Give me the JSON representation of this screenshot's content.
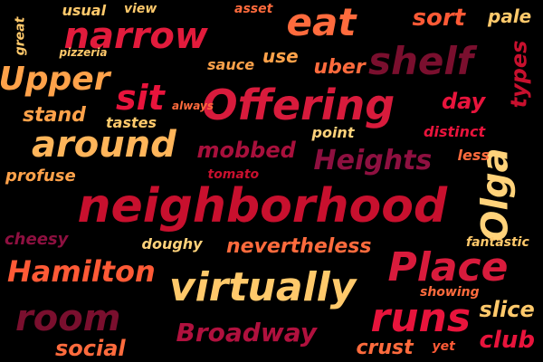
{
  "words": [
    {
      "text": "neighborhood",
      "color": "#c8102e",
      "rotated": false
    },
    {
      "text": "Offering",
      "color": "#d81b3c",
      "rotated": false
    },
    {
      "text": "around",
      "color": "#ffb55a",
      "rotated": false
    },
    {
      "text": "virtually",
      "color": "#ffc96b",
      "rotated": false
    },
    {
      "text": "narrow",
      "color": "#e21b3c",
      "rotated": false
    },
    {
      "text": "eat",
      "color": "#ff6b3d",
      "rotated": false
    },
    {
      "text": "shelf",
      "color": "#7a0f2e",
      "rotated": false
    },
    {
      "text": "Upper",
      "color": "#ffa24a",
      "rotated": false
    },
    {
      "text": "Place",
      "color": "#d81b3c",
      "rotated": false
    },
    {
      "text": "runs",
      "color": "#e8143c",
      "rotated": false
    },
    {
      "text": "room",
      "color": "#7a0f2e",
      "rotated": false
    },
    {
      "text": "Olga",
      "color": "#ffd27a",
      "rotated": true
    },
    {
      "text": "sit",
      "color": "#e8143c",
      "rotated": false
    },
    {
      "text": "Hamilton",
      "color": "#ff5a36",
      "rotated": false
    },
    {
      "text": "Broadway",
      "color": "#b0113e",
      "rotated": false
    },
    {
      "text": "Heights",
      "color": "#8e1040",
      "rotated": false
    },
    {
      "text": "mobbed",
      "color": "#a8103c",
      "rotated": false
    },
    {
      "text": "nevertheless",
      "color": "#ff6b3d",
      "rotated": false
    },
    {
      "text": "stand",
      "color": "#ffa24a",
      "rotated": false
    },
    {
      "text": "day",
      "color": "#e8143c",
      "rotated": false
    },
    {
      "text": "types",
      "color": "#c8102e",
      "rotated": true
    },
    {
      "text": "sort",
      "color": "#ff5a36",
      "rotated": false
    },
    {
      "text": "slice",
      "color": "#ffc96b",
      "rotated": false
    },
    {
      "text": "club",
      "color": "#e8143c",
      "rotated": false
    },
    {
      "text": "social",
      "color": "#ff6b3d",
      "rotated": false
    },
    {
      "text": "crust",
      "color": "#ff6b3d",
      "rotated": false
    },
    {
      "text": "uber",
      "color": "#ff6b3d",
      "rotated": false
    },
    {
      "text": "use",
      "color": "#ffa24a",
      "rotated": false
    },
    {
      "text": "pale",
      "color": "#ffc96b",
      "rotated": false
    },
    {
      "text": "cheesy",
      "color": "#8e1040",
      "rotated": false
    },
    {
      "text": "profuse",
      "color": "#ffa24a",
      "rotated": false
    },
    {
      "text": "doughy",
      "color": "#ffd27a",
      "rotated": false
    },
    {
      "text": "sauce",
      "color": "#ffa24a",
      "rotated": false
    },
    {
      "text": "tastes",
      "color": "#ffc96b",
      "rotated": false
    },
    {
      "text": "usual",
      "color": "#ffc96b",
      "rotated": false
    },
    {
      "text": "view",
      "color": "#ffc96b",
      "rotated": false
    },
    {
      "text": "asset",
      "color": "#ff6b3d",
      "rotated": false
    },
    {
      "text": "pizzeria",
      "color": "#ffc96b",
      "rotated": false
    },
    {
      "text": "great",
      "color": "#ffc96b",
      "rotated": true
    },
    {
      "text": "always",
      "color": "#ff6b3d",
      "rotated": false
    },
    {
      "text": "point",
      "color": "#ffd27a",
      "rotated": false
    },
    {
      "text": "distinct",
      "color": "#e8143c",
      "rotated": false
    },
    {
      "text": "less",
      "color": "#ff6b3d",
      "rotated": false
    },
    {
      "text": "tomato",
      "color": "#c8102e",
      "rotated": false
    },
    {
      "text": "fantastic",
      "color": "#ffc96b",
      "rotated": false
    },
    {
      "text": "showing",
      "color": "#ff6b3d",
      "rotated": false
    },
    {
      "text": "yet",
      "color": "#ff5a36",
      "rotated": false
    }
  ]
}
